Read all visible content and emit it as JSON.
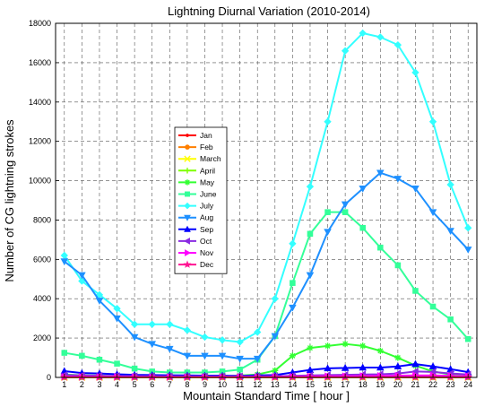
{
  "chart_data": {
    "type": "line",
    "title": "Lightning Diurnal Variation (2010-2014)",
    "xlabel": "Mountain Standard Time [ hour ]",
    "ylabel": "Number of CG lightning strokes",
    "xlim": [
      0.5,
      24.5
    ],
    "ylim": [
      0,
      18000
    ],
    "x": [
      1,
      2,
      3,
      4,
      5,
      6,
      7,
      8,
      9,
      10,
      11,
      12,
      13,
      14,
      15,
      16,
      17,
      18,
      19,
      20,
      21,
      22,
      23,
      24
    ],
    "yticks": [
      0,
      2000,
      4000,
      6000,
      8000,
      10000,
      12000,
      14000,
      16000,
      18000
    ],
    "grid": true,
    "legend_position": "center-left",
    "series": [
      {
        "name": "Jan",
        "color": "#ff0000",
        "marker": "dot",
        "values": [
          0,
          0,
          0,
          0,
          0,
          0,
          0,
          0,
          0,
          0,
          0,
          0,
          0,
          0,
          0,
          0,
          0,
          0,
          0,
          0,
          0,
          0,
          0,
          0
        ]
      },
      {
        "name": "Feb",
        "color": "#ff7f00",
        "marker": "circle",
        "values": [
          5,
          5,
          5,
          5,
          5,
          5,
          5,
          5,
          5,
          5,
          5,
          5,
          5,
          5,
          5,
          5,
          5,
          5,
          5,
          5,
          5,
          5,
          5,
          5
        ]
      },
      {
        "name": "March",
        "color": "#ffff00",
        "marker": "x",
        "values": [
          10,
          10,
          10,
          10,
          10,
          10,
          10,
          10,
          10,
          10,
          10,
          10,
          10,
          10,
          10,
          10,
          10,
          10,
          10,
          10,
          10,
          10,
          10,
          10
        ]
      },
      {
        "name": "April",
        "color": "#7fff00",
        "marker": "plus",
        "values": [
          20,
          20,
          20,
          20,
          20,
          20,
          20,
          20,
          20,
          20,
          20,
          20,
          20,
          20,
          20,
          20,
          20,
          20,
          20,
          20,
          20,
          20,
          20,
          20
        ]
      },
      {
        "name": "May",
        "color": "#33ff33",
        "marker": "star",
        "values": [
          150,
          110,
          90,
          60,
          40,
          40,
          50,
          50,
          60,
          70,
          90,
          150,
          350,
          1100,
          1500,
          1600,
          1700,
          1600,
          1350,
          1000,
          600,
          300,
          150,
          100
        ]
      },
      {
        "name": "June",
        "color": "#33ff99",
        "marker": "square",
        "values": [
          1250,
          1100,
          900,
          700,
          450,
          300,
          250,
          250,
          250,
          300,
          400,
          900,
          2100,
          4800,
          7300,
          8400,
          8400,
          7600,
          6600,
          5700,
          4400,
          3600,
          2950,
          1950
        ]
      },
      {
        "name": "July",
        "color": "#33ffff",
        "marker": "diamond",
        "values": [
          6200,
          4900,
          4200,
          3500,
          2700,
          2700,
          2700,
          2400,
          2050,
          1900,
          1800,
          2300,
          4000,
          6800,
          9700,
          13000,
          16600,
          17500,
          17300,
          16900,
          15500,
          13000,
          9800,
          7600
        ]
      },
      {
        "name": "Aug",
        "color": "#1e90ff",
        "marker": "triangle-down",
        "values": [
          5900,
          5200,
          3900,
          3000,
          2050,
          1700,
          1450,
          1100,
          1100,
          1100,
          950,
          950,
          2100,
          3550,
          5200,
          7400,
          8800,
          9600,
          10400,
          10100,
          9600,
          8400,
          7450,
          6500
        ]
      },
      {
        "name": "Sep",
        "color": "#0000ff",
        "marker": "triangle-up",
        "values": [
          320,
          220,
          200,
          160,
          130,
          120,
          110,
          100,
          90,
          90,
          80,
          100,
          120,
          250,
          380,
          460,
          480,
          500,
          500,
          560,
          680,
          560,
          420,
          270
        ]
      },
      {
        "name": "Oct",
        "color": "#8a2be2",
        "marker": "triangle-left",
        "values": [
          120,
          100,
          80,
          70,
          60,
          60,
          50,
          50,
          50,
          50,
          50,
          50,
          60,
          80,
          100,
          120,
          130,
          150,
          160,
          200,
          300,
          280,
          200,
          150
        ]
      },
      {
        "name": "Nov",
        "color": "#ff00ff",
        "marker": "triangle-right",
        "values": [
          40,
          35,
          30,
          30,
          30,
          25,
          25,
          25,
          25,
          25,
          25,
          25,
          30,
          40,
          50,
          60,
          60,
          70,
          80,
          90,
          100,
          100,
          80,
          60
        ]
      },
      {
        "name": "Dec",
        "color": "#ff1493",
        "marker": "pentagram",
        "values": [
          15,
          15,
          15,
          15,
          15,
          15,
          15,
          15,
          15,
          15,
          15,
          15,
          15,
          15,
          15,
          15,
          15,
          15,
          15,
          15,
          15,
          15,
          15,
          15
        ]
      }
    ]
  }
}
